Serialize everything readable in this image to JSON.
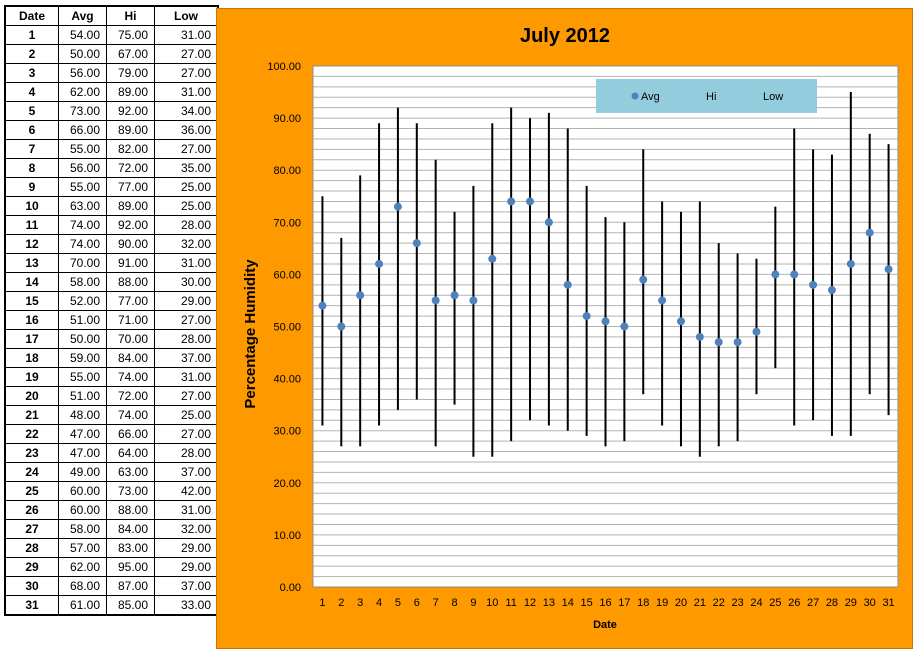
{
  "table": {
    "headers": [
      "Date",
      "Avg",
      "Hi",
      "Low"
    ],
    "rows": [
      [
        "1",
        "54.00",
        "75.00",
        "31.00"
      ],
      [
        "2",
        "50.00",
        "67.00",
        "27.00"
      ],
      [
        "3",
        "56.00",
        "79.00",
        "27.00"
      ],
      [
        "4",
        "62.00",
        "89.00",
        "31.00"
      ],
      [
        "5",
        "73.00",
        "92.00",
        "34.00"
      ],
      [
        "6",
        "66.00",
        "89.00",
        "36.00"
      ],
      [
        "7",
        "55.00",
        "82.00",
        "27.00"
      ],
      [
        "8",
        "56.00",
        "72.00",
        "35.00"
      ],
      [
        "9",
        "55.00",
        "77.00",
        "25.00"
      ],
      [
        "10",
        "63.00",
        "89.00",
        "25.00"
      ],
      [
        "11",
        "74.00",
        "92.00",
        "28.00"
      ],
      [
        "12",
        "74.00",
        "90.00",
        "32.00"
      ],
      [
        "13",
        "70.00",
        "91.00",
        "31.00"
      ],
      [
        "14",
        "58.00",
        "88.00",
        "30.00"
      ],
      [
        "15",
        "52.00",
        "77.00",
        "29.00"
      ],
      [
        "16",
        "51.00",
        "71.00",
        "27.00"
      ],
      [
        "17",
        "50.00",
        "70.00",
        "28.00"
      ],
      [
        "18",
        "59.00",
        "84.00",
        "37.00"
      ],
      [
        "19",
        "55.00",
        "74.00",
        "31.00"
      ],
      [
        "20",
        "51.00",
        "72.00",
        "27.00"
      ],
      [
        "21",
        "48.00",
        "74.00",
        "25.00"
      ],
      [
        "22",
        "47.00",
        "66.00",
        "27.00"
      ],
      [
        "23",
        "47.00",
        "64.00",
        "28.00"
      ],
      [
        "24",
        "49.00",
        "63.00",
        "37.00"
      ],
      [
        "25",
        "60.00",
        "73.00",
        "42.00"
      ],
      [
        "26",
        "60.00",
        "88.00",
        "31.00"
      ],
      [
        "27",
        "58.00",
        "84.00",
        "32.00"
      ],
      [
        "28",
        "57.00",
        "83.00",
        "29.00"
      ],
      [
        "29",
        "62.00",
        "95.00",
        "29.00"
      ],
      [
        "30",
        "68.00",
        "87.00",
        "37.00"
      ],
      [
        "31",
        "61.00",
        "85.00",
        "33.00"
      ]
    ]
  },
  "colors": {
    "panel_background": "#ff9900",
    "plot_background": "#ffffff",
    "gridline": "#b3b3b3",
    "avg_marker": "#4f81bd",
    "range_line": "#000000",
    "legend_background": "#93cddd"
  },
  "chart_data": {
    "type": "scatter",
    "title": "July 2012",
    "xlabel": "Date",
    "ylabel": "Percentage Humidity",
    "x": [
      1,
      2,
      3,
      4,
      5,
      6,
      7,
      8,
      9,
      10,
      11,
      12,
      13,
      14,
      15,
      16,
      17,
      18,
      19,
      20,
      21,
      22,
      23,
      24,
      25,
      26,
      27,
      28,
      29,
      30,
      31
    ],
    "xlim": [
      0.5,
      31.5
    ],
    "ylim": [
      0,
      100
    ],
    "y_ticks": [
      "0.00",
      "10.00",
      "20.00",
      "30.00",
      "40.00",
      "50.00",
      "60.00",
      "70.00",
      "80.00",
      "90.00",
      "100.00"
    ],
    "y_tick_values": [
      0,
      10,
      20,
      30,
      40,
      50,
      60,
      70,
      80,
      90,
      100
    ],
    "minor_grid_step": 2,
    "grid": true,
    "legend_position": "top-right",
    "series": [
      {
        "name": "Avg",
        "values": [
          54,
          50,
          56,
          62,
          73,
          66,
          55,
          56,
          55,
          63,
          74,
          74,
          70,
          58,
          52,
          51,
          50,
          59,
          55,
          51,
          48,
          47,
          47,
          49,
          60,
          60,
          58,
          57,
          62,
          68,
          61
        ]
      },
      {
        "name": "Hi",
        "values": [
          75,
          67,
          79,
          89,
          92,
          89,
          82,
          72,
          77,
          89,
          92,
          90,
          91,
          88,
          77,
          71,
          70,
          84,
          74,
          72,
          74,
          66,
          64,
          63,
          73,
          88,
          84,
          83,
          95,
          87,
          85
        ]
      },
      {
        "name": "Low",
        "values": [
          31,
          27,
          27,
          31,
          34,
          36,
          27,
          35,
          25,
          25,
          28,
          32,
          31,
          30,
          29,
          27,
          28,
          37,
          31,
          27,
          25,
          27,
          28,
          37,
          42,
          31,
          32,
          29,
          29,
          37,
          33
        ]
      }
    ]
  }
}
